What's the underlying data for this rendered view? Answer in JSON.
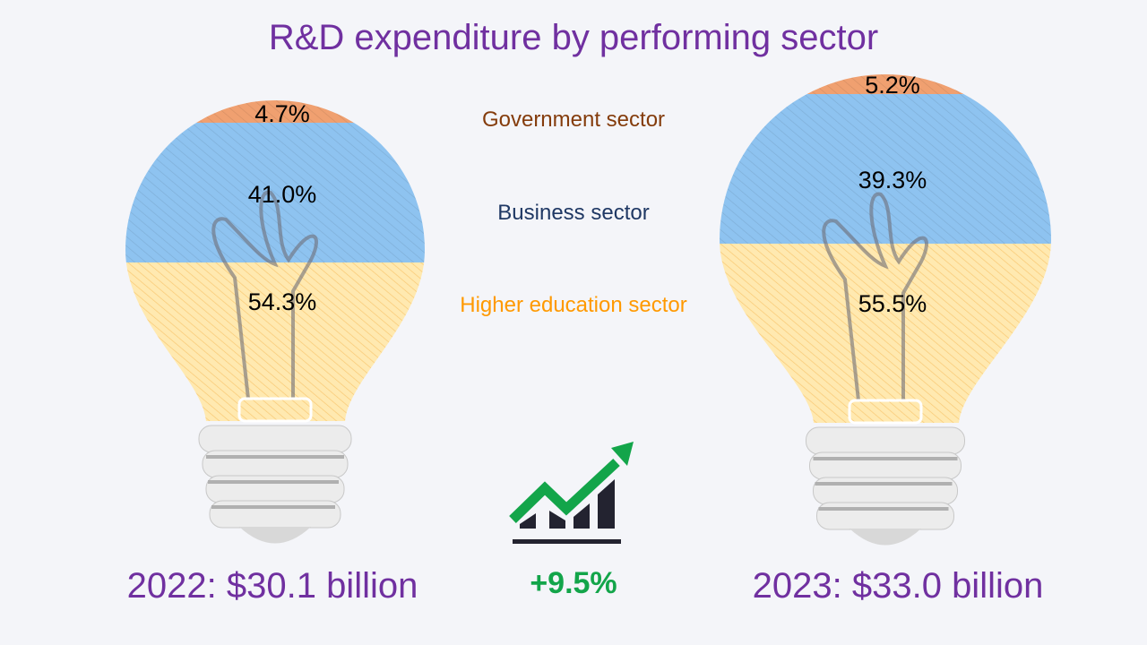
{
  "chart_data": {
    "type": "stacked-100-bar (lightbulb infographic)",
    "title": "R&D expenditure by performing sector",
    "categories": [
      "2022",
      "2023"
    ],
    "series": [
      {
        "name": "Government sector",
        "color": "#f0a070",
        "values": [
          4.7,
          5.2
        ],
        "labels": [
          "4.7%",
          "5.2%"
        ]
      },
      {
        "name": "Business sector",
        "color": "#8ec3f0",
        "values": [
          41.0,
          39.3
        ],
        "labels": [
          "41.0%",
          "39.3%"
        ]
      },
      {
        "name": "Higher education sector",
        "color": "#ffe9b0",
        "values": [
          54.3,
          55.5
        ],
        "labels": [
          "54.3%",
          "55.5%"
        ]
      }
    ],
    "totals": [
      "2022: $30.1 billion",
      "2023: $33.0 billion"
    ],
    "growth": "+9.5%"
  },
  "legend": {
    "government": "Government sector",
    "business": "Business sector",
    "higher": "Higher education sector",
    "colors": {
      "government": "#843c0c",
      "business": "#1f3864",
      "higher": "#ff9900"
    }
  },
  "icons": {
    "growth": "growth-chart-arrow-icon",
    "bulb": "lightbulb-icon"
  }
}
